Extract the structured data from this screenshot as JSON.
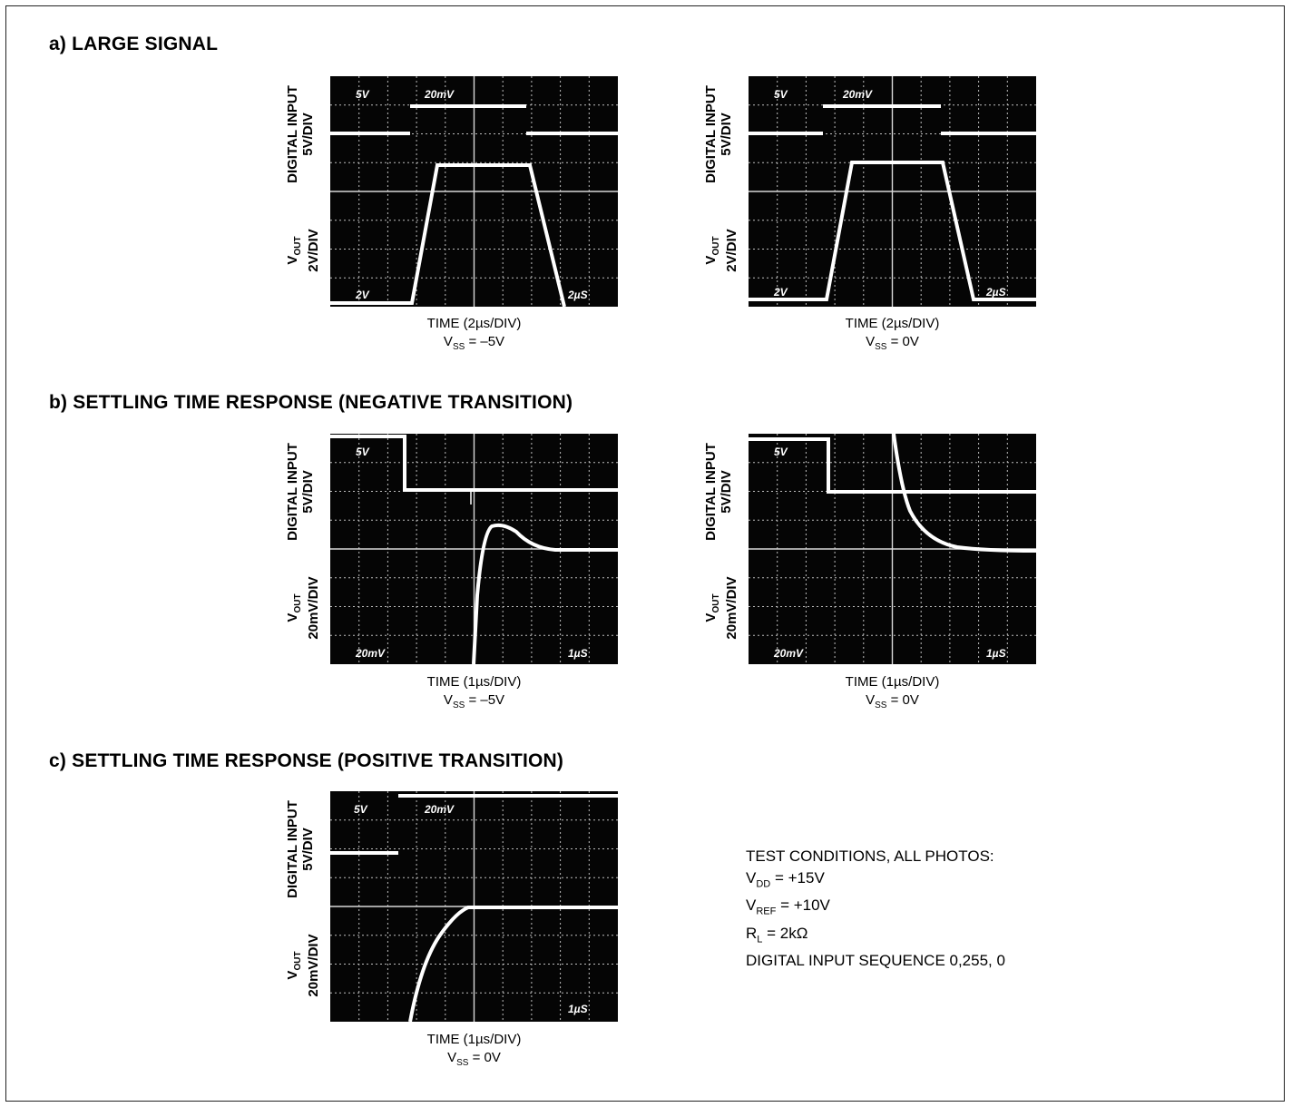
{
  "sections": {
    "a": "a) LARGE SIGNAL",
    "b": "b) SETTLING TIME RESPONSE (NEGATIVE TRANSITION)",
    "c": "c) SETTLING TIME RESPONSE (POSITIVE TRANSITION)"
  },
  "labels": {
    "digital_input": "DIGITAL INPUT",
    "div_5v": "5V/DIV",
    "vout_v": "V",
    "vout_sub": "OUT",
    "div_2v": "2V/DIV",
    "div_20mv": "20mV/DIV"
  },
  "scope_text": {
    "s5v": "5V",
    "s20mv": "20mV",
    "s2v": "2V",
    "s2us": "2µS",
    "s1us": "1µS"
  },
  "captions": {
    "a1_time": "TIME (2µs/DIV)",
    "a2_time": "TIME (2µs/DIV)",
    "b1_time": "TIME (1µs/DIV)",
    "b2_time": "TIME (1µs/DIV)",
    "c1_time": "TIME (1µs/DIV)",
    "vss_label": "V",
    "vss_sub": "SS",
    "vss_neg": " = –5V",
    "vss_zero": " = 0V"
  },
  "test_conditions": {
    "title": "TEST CONDITIONS, ALL PHOTOS:",
    "vdd_v": "V",
    "vdd_sub": "DD",
    "vdd_val": " = +15V",
    "vref_v": "V",
    "vref_sub": "REF",
    "vref_val": " = +10V",
    "rl_r": "R",
    "rl_sub": "L",
    "rl_val": " = 2kΩ",
    "sequence": "DIGITAL INPUT SEQUENCE 0,255, 0"
  },
  "colors": {
    "screen": "#050505",
    "trace": "#ffffff",
    "grid": "#bdbdbd"
  }
}
